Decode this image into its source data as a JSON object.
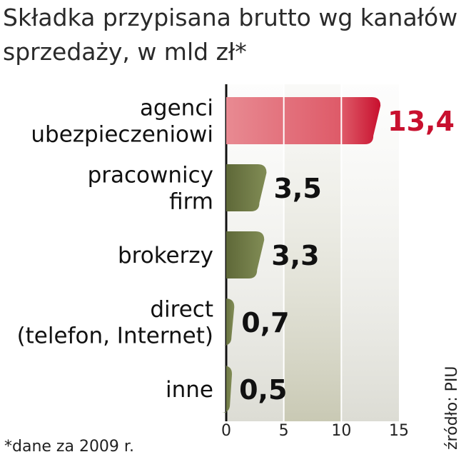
{
  "chart_data": {
    "type": "bar",
    "orientation": "horizontal",
    "title_lines": [
      "Składka przypisana brutto wg kanałów",
      "sprzedaży, w mld zł*"
    ],
    "categories": [
      [
        "agenci",
        "ubezpieczeniowi"
      ],
      [
        "pracownicy",
        "firm"
      ],
      [
        "brokerzy"
      ],
      [
        "direct",
        "(telefon, Internet)"
      ],
      [
        "inne"
      ]
    ],
    "values": [
      13.4,
      3.5,
      3.3,
      0.7,
      0.5
    ],
    "value_labels": [
      "13,4",
      "3,5",
      "3,3",
      "0,7",
      "0,5"
    ],
    "x_ticks": [
      "0",
      "5",
      "10",
      "15"
    ],
    "xlim": [
      0,
      15
    ],
    "highlight_color": "#d93a4f",
    "bar_color": "#6f7a45",
    "highlight_label_color": "#c8102e",
    "note": "*dane za 2009 r.",
    "source": "źródło: PIU"
  }
}
